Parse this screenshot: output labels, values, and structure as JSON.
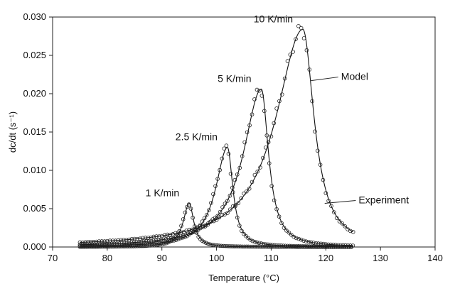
{
  "chart_data": {
    "type": "scatter",
    "xlabel": "Temperature (°C)",
    "ylabel": "dc/dt (s⁻¹)",
    "xlim": [
      70,
      140
    ],
    "ylim": [
      0,
      0.03
    ],
    "xticks": [
      "70",
      "80",
      "90",
      "100",
      "110",
      "120",
      "130",
      "140"
    ],
    "yticks": [
      "0.000",
      "0.005",
      "0.010",
      "0.015",
      "0.020",
      "0.025",
      "0.030"
    ],
    "grid": false,
    "series": [
      {
        "label": "1 K/min",
        "peak_x": 95.0,
        "peak_y": 0.0057,
        "rise_width": 1.3,
        "fall_width": 1.0
      },
      {
        "label": "2.5 K/min",
        "peak_x": 102.0,
        "peak_y": 0.013,
        "rise_width": 2.6,
        "fall_width": 1.2
      },
      {
        "label": "5 K/min",
        "peak_x": 108.2,
        "peak_y": 0.0206,
        "rise_width": 4.0,
        "fall_width": 1.6
      },
      {
        "label": "10 K/min",
        "peak_x": 115.8,
        "peak_y": 0.0284,
        "rise_width": 6.0,
        "fall_width": 2.5
      }
    ],
    "annotations": [
      {
        "text": "Model",
        "point_x": 117.3,
        "point_y": 0.0217,
        "label_x": 122.8,
        "label_y": 0.0218
      },
      {
        "text": "Experiment",
        "point_x": 119.8,
        "point_y": 0.0057,
        "label_x": 126.0,
        "label_y": 0.0057
      }
    ]
  }
}
